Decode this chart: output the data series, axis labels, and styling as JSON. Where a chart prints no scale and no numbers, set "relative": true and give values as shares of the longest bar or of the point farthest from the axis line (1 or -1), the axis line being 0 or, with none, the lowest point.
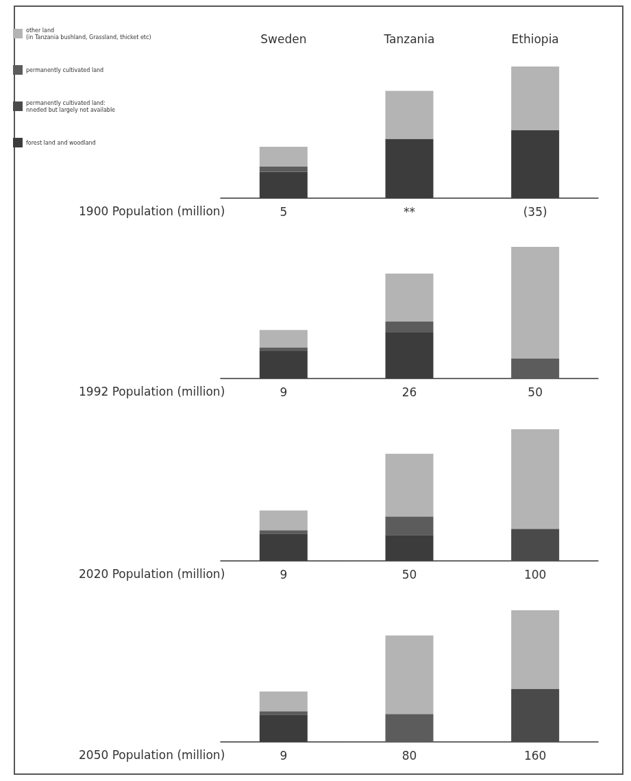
{
  "chart_data": [
    {
      "type": "bar",
      "stacked": true,
      "relative": true,
      "legend": "top left",
      "tick_labels": "x",
      "xlabel": "1900 Population (million)",
      "categories": [
        "Sweden",
        "Tanzania",
        "Ethiopia"
      ],
      "annotations": [
        "5",
        "**",
        "(35)"
      ],
      "series": [
        {
          "name": "forest land and woodland",
          "color": "#3c3c3c",
          "values": [
            0.2,
            0.45,
            0.515
          ]
        },
        {
          "name": "permanently cultivated land:\nnneded but largely not available",
          "color": "#4a4a4a",
          "values": [
            0,
            0,
            0
          ]
        },
        {
          "name": "permanently cultivated land",
          "color": "#5c5c5c",
          "values": [
            0.04,
            0,
            0
          ]
        },
        {
          "name": "other land\n(in Tanzania bushland, Grassland, thicket etc)",
          "color": "#b4b4b4",
          "values": [
            0.15,
            0.365,
            0.485
          ]
        }
      ]
    },
    {
      "type": "bar",
      "stacked": true,
      "relative": true,
      "tick_labels": false,
      "xlabel": "1992 Population (million)",
      "categories": [
        null,
        null,
        null
      ],
      "annotations": [
        "9",
        "26",
        "50"
      ],
      "series": [
        {
          "color": "#3c3c3c",
          "values": [
            0.208,
            0.349,
            null
          ]
        },
        {
          "color": "#4a4a4a",
          "values": [
            null,
            null,
            null
          ]
        },
        {
          "color": "#5c5c5c",
          "values": [
            0.026,
            0.083,
            0.151
          ]
        },
        {
          "color": "#b4b4b4",
          "values": [
            0.135,
            0.365,
            0.849
          ]
        }
      ]
    },
    {
      "type": "bar",
      "stacked": true,
      "relative": true,
      "tick_labels": false,
      "xlabel": "2020 Population (million)",
      "categories": [
        null,
        null,
        null
      ],
      "annotations": [
        "9",
        "50",
        "100"
      ],
      "series": [
        {
          "color": "#3c3c3c",
          "values": [
            0.207,
            0.197,
            null
          ]
        },
        {
          "color": "#4a4a4a",
          "values": [
            null,
            null,
            0.244
          ]
        },
        {
          "color": "#5c5c5c",
          "values": [
            0.026,
            0.14,
            null
          ]
        },
        {
          "color": "#b4b4b4",
          "values": [
            0.15,
            0.477,
            0.756
          ]
        }
      ]
    },
    {
      "type": "bar",
      "stacked": true,
      "relative": true,
      "tick_labels": false,
      "xlabel": "2050 Population (million)",
      "categories": [
        null,
        null,
        null
      ],
      "annotations": [
        "9",
        "80",
        "160"
      ],
      "series": [
        {
          "color": "#3c3c3c",
          "values": [
            0.207,
            null,
            null
          ]
        },
        {
          "color": "#4a4a4a",
          "values": [
            null,
            null,
            0.404
          ]
        },
        {
          "color": "#5c5c5c",
          "values": [
            0.026,
            0.212,
            null
          ]
        },
        {
          "color": "#b4b4b4",
          "values": [
            0.15,
            0.596,
            0.596
          ]
        }
      ]
    }
  ]
}
